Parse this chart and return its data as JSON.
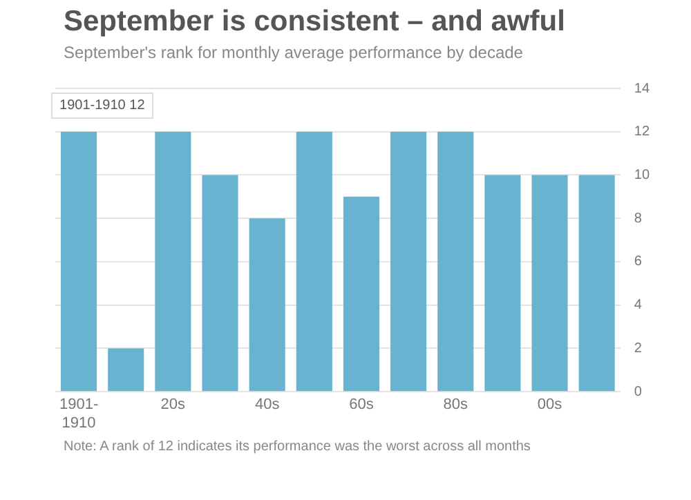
{
  "chart_data": {
    "type": "bar",
    "title": "September is consistent – and awful",
    "subtitle": "September's rank for monthly average performance by decade",
    "categories": [
      "1901-1910",
      null,
      "20s",
      null,
      "40s",
      null,
      "60s",
      null,
      "80s",
      null,
      "00s",
      null
    ],
    "values": [
      12,
      2,
      12,
      10,
      8,
      12,
      9,
      12,
      12,
      10,
      10,
      10
    ],
    "color": "#67b3d0",
    "ylim": [
      0,
      14
    ],
    "yticks": [
      0,
      2,
      4,
      6,
      8,
      10,
      12,
      14
    ],
    "grid": "y",
    "annotations": [
      {
        "text": "1901-1910 12",
        "x": "1901-1910",
        "y": 12
      },
      "Note: A rank of 12 indicates its performance was the worst across all months"
    ]
  }
}
